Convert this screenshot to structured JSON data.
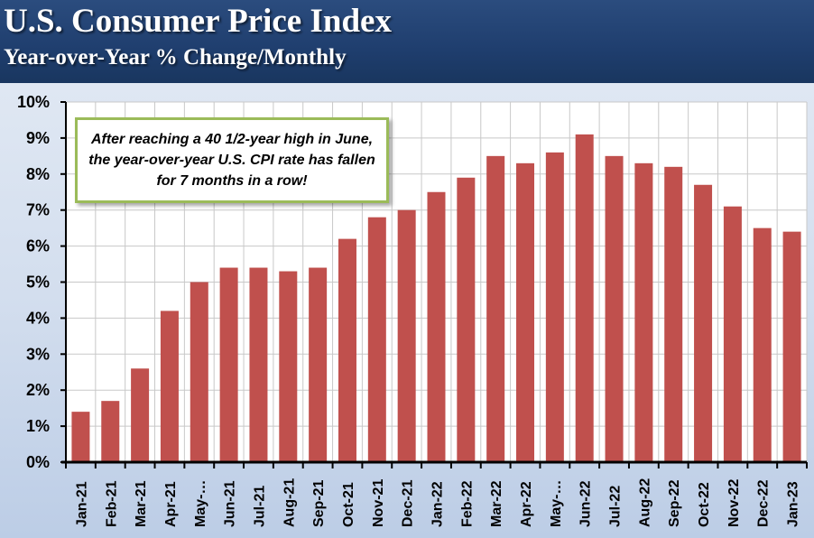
{
  "header": {
    "title": "U.S. Consumer Price Index",
    "subtitle": "Year-over-Year % Change/Monthly"
  },
  "annotation": "After reaching a 40 1/2-year high in June, the year-over-year U.S. CPI rate has fallen for 7 months in a row!",
  "colors": {
    "bar": "#c0504d",
    "header": "#1f3e6e",
    "callout_border": "#9bbb59"
  },
  "chart_data": {
    "type": "bar",
    "categories": [
      "Jan-21",
      "Feb-21",
      "Mar-21",
      "Apr-21",
      "May-…",
      "Jun-21",
      "Jul-21",
      "Aug-21",
      "Sep-21",
      "Oct-21",
      "Nov-21",
      "Dec-21",
      "Jan-22",
      "Feb-22",
      "Mar-22",
      "Apr-22",
      "May-…",
      "Jun-22",
      "Jul-22",
      "Aug-22",
      "Sep-22",
      "Oct-22",
      "Nov-22",
      "Dec-22",
      "Jan-23"
    ],
    "values": [
      1.4,
      1.7,
      2.6,
      4.2,
      5.0,
      5.4,
      5.4,
      5.3,
      5.4,
      6.2,
      6.8,
      7.0,
      7.5,
      7.9,
      8.5,
      8.3,
      8.6,
      9.1,
      8.5,
      8.3,
      8.2,
      7.7,
      7.1,
      6.5,
      6.4
    ],
    "y_ticks": [
      "0%",
      "1%",
      "2%",
      "3%",
      "4%",
      "5%",
      "6%",
      "7%",
      "8%",
      "9%",
      "10%"
    ],
    "ylim": [
      0,
      10
    ],
    "grid": true,
    "legend": false
  }
}
